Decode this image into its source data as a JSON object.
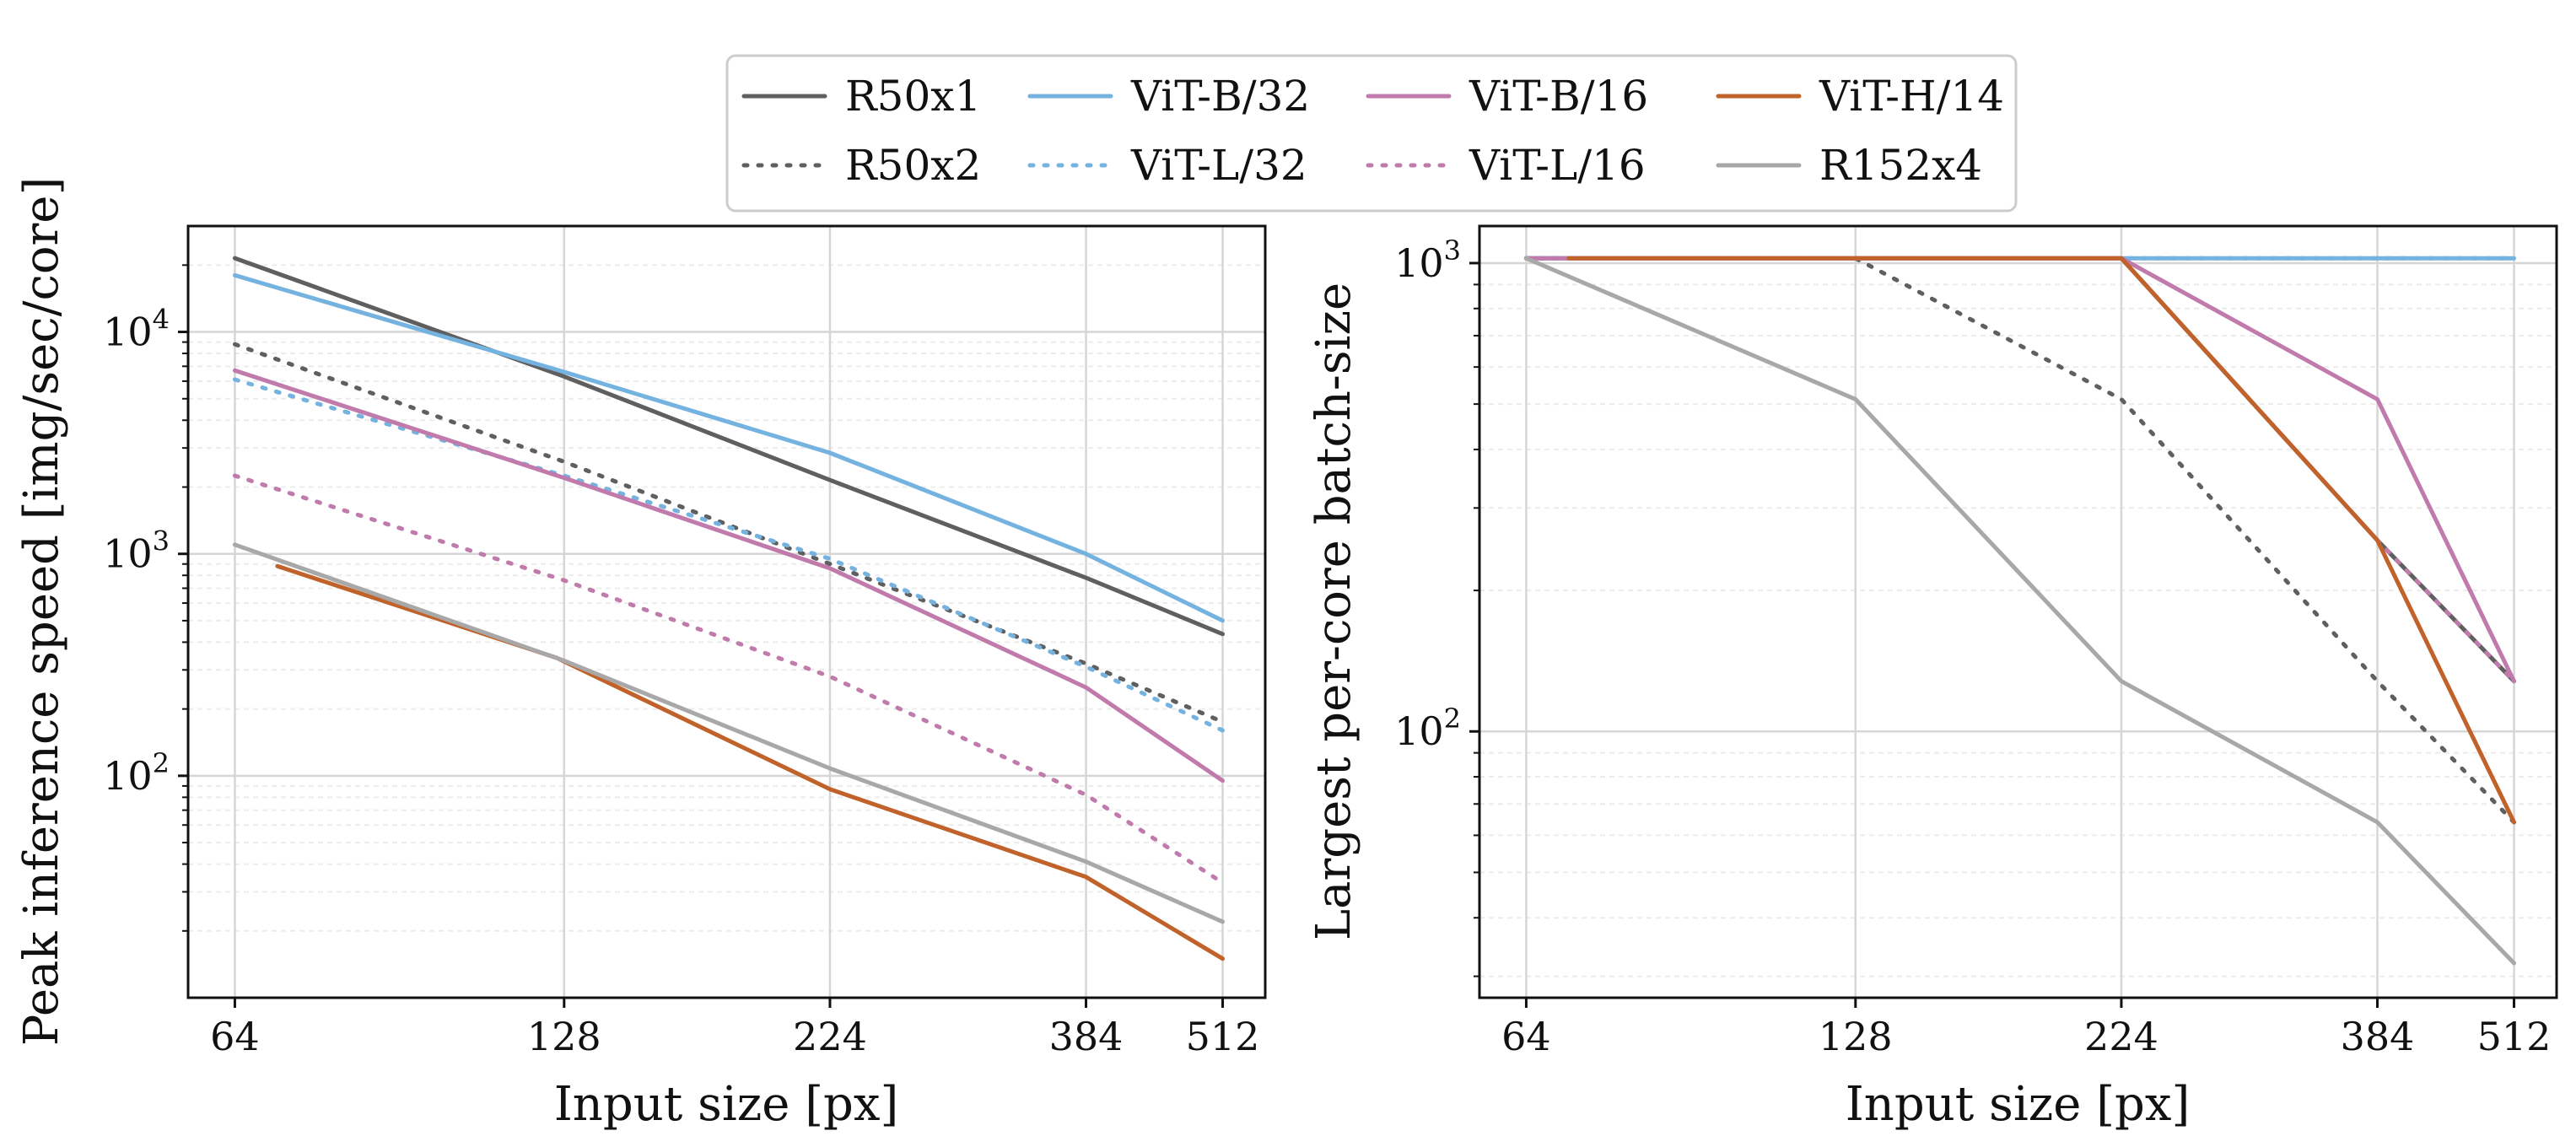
{
  "colors": {
    "R50x1": "#5f5f5f",
    "R50x2": "#5f5f5f",
    "ViT-B/32": "#74b2e0",
    "ViT-L/32": "#74b2e0",
    "ViT-B/16": "#c07aab",
    "ViT-L/16": "#c07aab",
    "ViT-H/14": "#c0622a",
    "R152x4": "#a8a8a8"
  },
  "legend": {
    "entries": [
      {
        "name": "R50x1",
        "style": "solid"
      },
      {
        "name": "R50x2",
        "style": "dotted"
      },
      {
        "name": "ViT-B/32",
        "style": "solid"
      },
      {
        "name": "ViT-L/32",
        "style": "dotted"
      },
      {
        "name": "ViT-B/16",
        "style": "solid"
      },
      {
        "name": "ViT-L/16",
        "style": "dotted"
      },
      {
        "name": "ViT-H/14",
        "style": "solid"
      },
      {
        "name": "R152x4",
        "style": "solid"
      }
    ]
  },
  "chart_data": [
    {
      "type": "line",
      "xscale": "log",
      "yscale": "log",
      "xlabel": "Input size [px]",
      "ylabel": "Peak inference speed [img/sec/core]",
      "xlim": [
        58,
        560
      ],
      "ylim": [
        10,
        30000
      ],
      "xticks": [
        64,
        128,
        224,
        384,
        512
      ],
      "yticks": [
        {
          "value": 100,
          "base": "10",
          "exp": "2"
        },
        {
          "value": 1000,
          "base": "10",
          "exp": "3"
        },
        {
          "value": 10000,
          "base": "10",
          "exp": "4"
        }
      ],
      "grid": true,
      "series": [
        {
          "name": "R50x1",
          "style": "solid",
          "x": [
            64,
            128,
            224,
            384,
            512
          ],
          "y": [
            21500,
            6300,
            2150,
            780,
            435
          ]
        },
        {
          "name": "R50x2",
          "style": "dotted",
          "x": [
            64,
            128,
            224,
            384,
            512
          ],
          "y": [
            8800,
            2600,
            900,
            320,
            175
          ]
        },
        {
          "name": "ViT-B/32",
          "style": "solid",
          "x": [
            64,
            128,
            224,
            384,
            512
          ],
          "y": [
            18000,
            6600,
            2850,
            1000,
            500
          ]
        },
        {
          "name": "ViT-L/32",
          "style": "dotted",
          "x": [
            64,
            128,
            224,
            384,
            512
          ],
          "y": [
            6100,
            2250,
            950,
            310,
            160
          ]
        },
        {
          "name": "ViT-B/16",
          "style": "solid",
          "x": [
            64,
            128,
            224,
            384,
            512
          ],
          "y": [
            6700,
            2200,
            860,
            250,
            95
          ]
        },
        {
          "name": "ViT-L/16",
          "style": "dotted",
          "x": [
            64,
            128,
            224,
            384,
            512
          ],
          "y": [
            2250,
            760,
            280,
            82,
            33
          ]
        },
        {
          "name": "ViT-H/14",
          "style": "solid",
          "x": [
            70,
            126,
            224,
            384,
            512
          ],
          "y": [
            880,
            340,
            87,
            35,
            15
          ]
        },
        {
          "name": "R152x4",
          "style": "solid",
          "x": [
            64,
            128,
            224,
            384,
            512
          ],
          "y": [
            1100,
            330,
            108,
            41,
            22
          ]
        }
      ]
    },
    {
      "type": "line",
      "xscale": "log",
      "yscale": "log",
      "xlabel": "Input size [px]",
      "ylabel": "Largest per-core batch-size",
      "xlim": [
        58,
        560
      ],
      "ylim": [
        27,
        1200
      ],
      "xticks": [
        64,
        128,
        224,
        384,
        512
      ],
      "yticks": [
        {
          "value": 100,
          "base": "10",
          "exp": "2"
        },
        {
          "value": 1000,
          "base": "10",
          "exp": "3"
        }
      ],
      "grid": true,
      "series": [
        {
          "name": "R50x1",
          "style": "solid",
          "x": [
            64,
            128,
            224,
            384,
            512
          ],
          "y": [
            1024,
            1024,
            1024,
            256,
            128
          ]
        },
        {
          "name": "R50x2",
          "style": "dotted",
          "x": [
            64,
            128,
            224,
            384,
            512
          ],
          "y": [
            1024,
            1024,
            512,
            128,
            64
          ]
        },
        {
          "name": "ViT-B/32",
          "style": "solid",
          "x": [
            64,
            128,
            224,
            384,
            512
          ],
          "y": [
            1024,
            1024,
            1024,
            1024,
            1024
          ]
        },
        {
          "name": "ViT-L/32",
          "style": "dotted",
          "x": [
            64,
            128,
            224,
            384,
            512
          ],
          "y": [
            1024,
            1024,
            1024,
            1024,
            1024
          ]
        },
        {
          "name": "ViT-B/16",
          "style": "solid",
          "x": [
            64,
            128,
            224,
            384,
            512
          ],
          "y": [
            1024,
            1024,
            1024,
            512,
            128
          ]
        },
        {
          "name": "ViT-L/16",
          "style": "dotted",
          "x": [
            64,
            128,
            224,
            384,
            512
          ],
          "y": [
            1024,
            1024,
            1024,
            256,
            128
          ]
        },
        {
          "name": "ViT-H/14",
          "style": "solid",
          "x": [
            70,
            128,
            224,
            384,
            512
          ],
          "y": [
            1024,
            1024,
            1024,
            256,
            64
          ]
        },
        {
          "name": "R152x4",
          "style": "solid",
          "x": [
            64,
            128,
            224,
            384,
            512
          ],
          "y": [
            1024,
            512,
            128,
            64,
            32
          ]
        }
      ]
    }
  ]
}
